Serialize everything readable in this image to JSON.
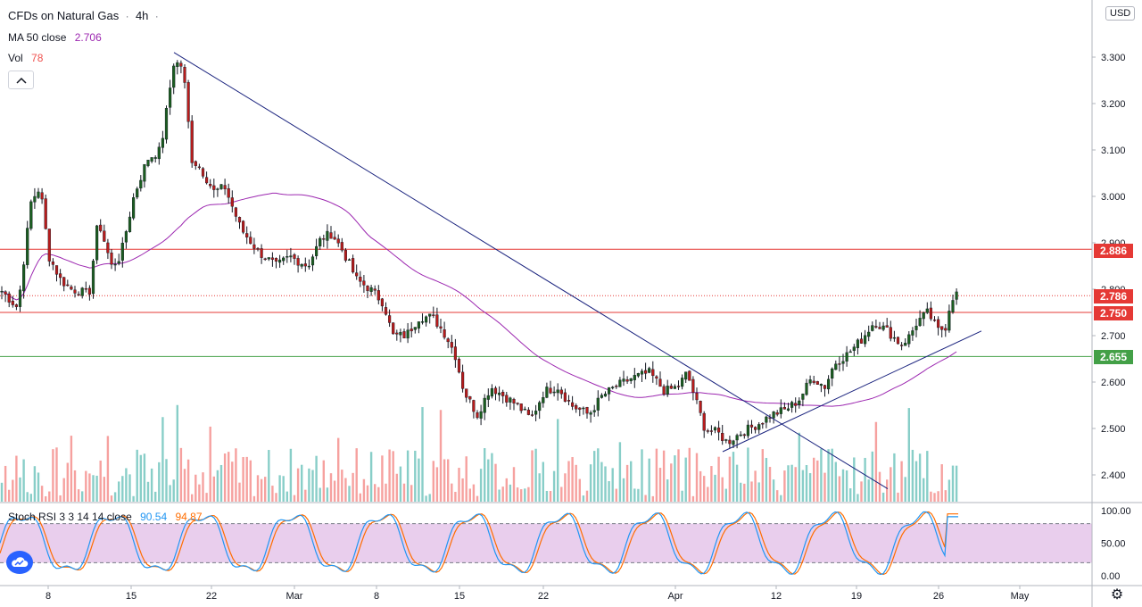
{
  "header": {
    "symbol": "CFDs on Natural Gas",
    "separator": "·",
    "timeframe": "4h",
    "dot": "·"
  },
  "indicators": {
    "ma_label": "MA 50 close",
    "ma_value": "2.706",
    "vol_label": "Vol",
    "vol_value": "78",
    "stoch_label": "Stoch RSI 3 3 14 14 close",
    "stoch_k": "90.54",
    "stoch_d": "94.87"
  },
  "currency": "USD",
  "price_labels": {
    "upper_resistance": "2.886",
    "current_price": "2.786",
    "resistance": "2.750",
    "support": "2.655"
  },
  "colors": {
    "up": "#26a69a",
    "down": "#ef5350",
    "ma": "#9c27b0",
    "stoch_k": "#2196f3",
    "stoch_d": "#ff6d00",
    "band": "#e1bee7",
    "trend": "#1a237e",
    "hline_red": "#e53935",
    "hline_green": "#43a047",
    "candle_body_up": "#1b5e20",
    "candle_body_down": "#b71c1c"
  },
  "chart_data": {
    "type": "candlestick",
    "timeframe": "4h",
    "x_tick_labels": [
      "8",
      "15",
      "22",
      "Mar",
      "8",
      "15",
      "22",
      "Apr",
      "12",
      "19",
      "26",
      "May"
    ],
    "y_tick_labels": [
      "3.300",
      "3.200",
      "3.100",
      "3.000",
      "2.900",
      "2.800",
      "2.700",
      "2.600",
      "2.500",
      "2.400"
    ],
    "ylim": [
      2.35,
      3.4
    ],
    "anchors": [
      [
        0,
        2.8
      ],
      [
        10,
        2.78
      ],
      [
        20,
        2.76
      ],
      [
        35,
        2.99
      ],
      [
        45,
        3.02
      ],
      [
        55,
        2.87
      ],
      [
        68,
        2.82
      ],
      [
        80,
        2.8
      ],
      [
        100,
        2.79
      ],
      [
        110,
        2.95
      ],
      [
        125,
        2.85
      ],
      [
        135,
        2.87
      ],
      [
        150,
        3.0
      ],
      [
        165,
        3.08
      ],
      [
        180,
        3.1
      ],
      [
        195,
        3.29
      ],
      [
        205,
        3.28
      ],
      [
        215,
        3.08
      ],
      [
        225,
        3.06
      ],
      [
        240,
        3.01
      ],
      [
        252,
        3.02
      ],
      [
        270,
        2.93
      ],
      [
        290,
        2.88
      ],
      [
        310,
        2.85
      ],
      [
        325,
        2.87
      ],
      [
        345,
        2.85
      ],
      [
        360,
        2.91
      ],
      [
        372,
        2.92
      ],
      [
        385,
        2.88
      ],
      [
        400,
        2.82
      ],
      [
        415,
        2.8
      ],
      [
        430,
        2.77
      ],
      [
        440,
        2.7
      ],
      [
        455,
        2.7
      ],
      [
        470,
        2.74
      ],
      [
        485,
        2.74
      ],
      [
        500,
        2.7
      ],
      [
        510,
        2.66
      ],
      [
        520,
        2.58
      ],
      [
        535,
        2.53
      ],
      [
        550,
        2.59
      ],
      [
        565,
        2.57
      ],
      [
        580,
        2.55
      ],
      [
        595,
        2.52
      ],
      [
        610,
        2.58
      ],
      [
        625,
        2.59
      ],
      [
        640,
        2.55
      ],
      [
        660,
        2.53
      ],
      [
        675,
        2.57
      ],
      [
        690,
        2.59
      ],
      [
        710,
        2.61
      ],
      [
        728,
        2.62
      ],
      [
        745,
        2.58
      ],
      [
        760,
        2.59
      ],
      [
        770,
        2.62
      ],
      [
        780,
        2.56
      ],
      [
        790,
        2.5
      ],
      [
        805,
        2.49
      ],
      [
        815,
        2.47
      ],
      [
        830,
        2.49
      ],
      [
        850,
        2.51
      ],
      [
        865,
        2.53
      ],
      [
        880,
        2.54
      ],
      [
        895,
        2.56
      ],
      [
        910,
        2.61
      ],
      [
        925,
        2.59
      ],
      [
        935,
        2.64
      ],
      [
        950,
        2.66
      ],
      [
        965,
        2.69
      ],
      [
        980,
        2.73
      ],
      [
        995,
        2.71
      ],
      [
        1010,
        2.68
      ],
      [
        1020,
        2.7
      ],
      [
        1028,
        2.73
      ],
      [
        1040,
        2.75
      ],
      [
        1052,
        2.71
      ],
      [
        1060,
        2.72
      ],
      [
        1066,
        2.78
      ],
      [
        1072,
        2.79
      ],
      [
        1076,
        2.786
      ]
    ],
    "horizontal_lines": [
      {
        "price": 2.886,
        "color": "red"
      },
      {
        "price": 2.786,
        "color": "red",
        "style": "dotted"
      },
      {
        "price": 2.75,
        "color": "red"
      },
      {
        "price": 2.655,
        "color": "green"
      }
    ],
    "trendlines": [
      {
        "from": [
          195,
          3.31
        ],
        "to": [
          995,
          2.37
        ]
      },
      {
        "from": [
          810,
          2.45
        ],
        "to": [
          1100,
          2.71
        ]
      }
    ],
    "volume": {
      "last": 78
    },
    "stoch_rsi": {
      "k": 90.54,
      "d": 94.87,
      "levels": [
        80,
        20
      ],
      "ylim": [
        0,
        100
      ],
      "tick_labels": [
        "100.00",
        "50.00",
        "0.00"
      ]
    }
  }
}
